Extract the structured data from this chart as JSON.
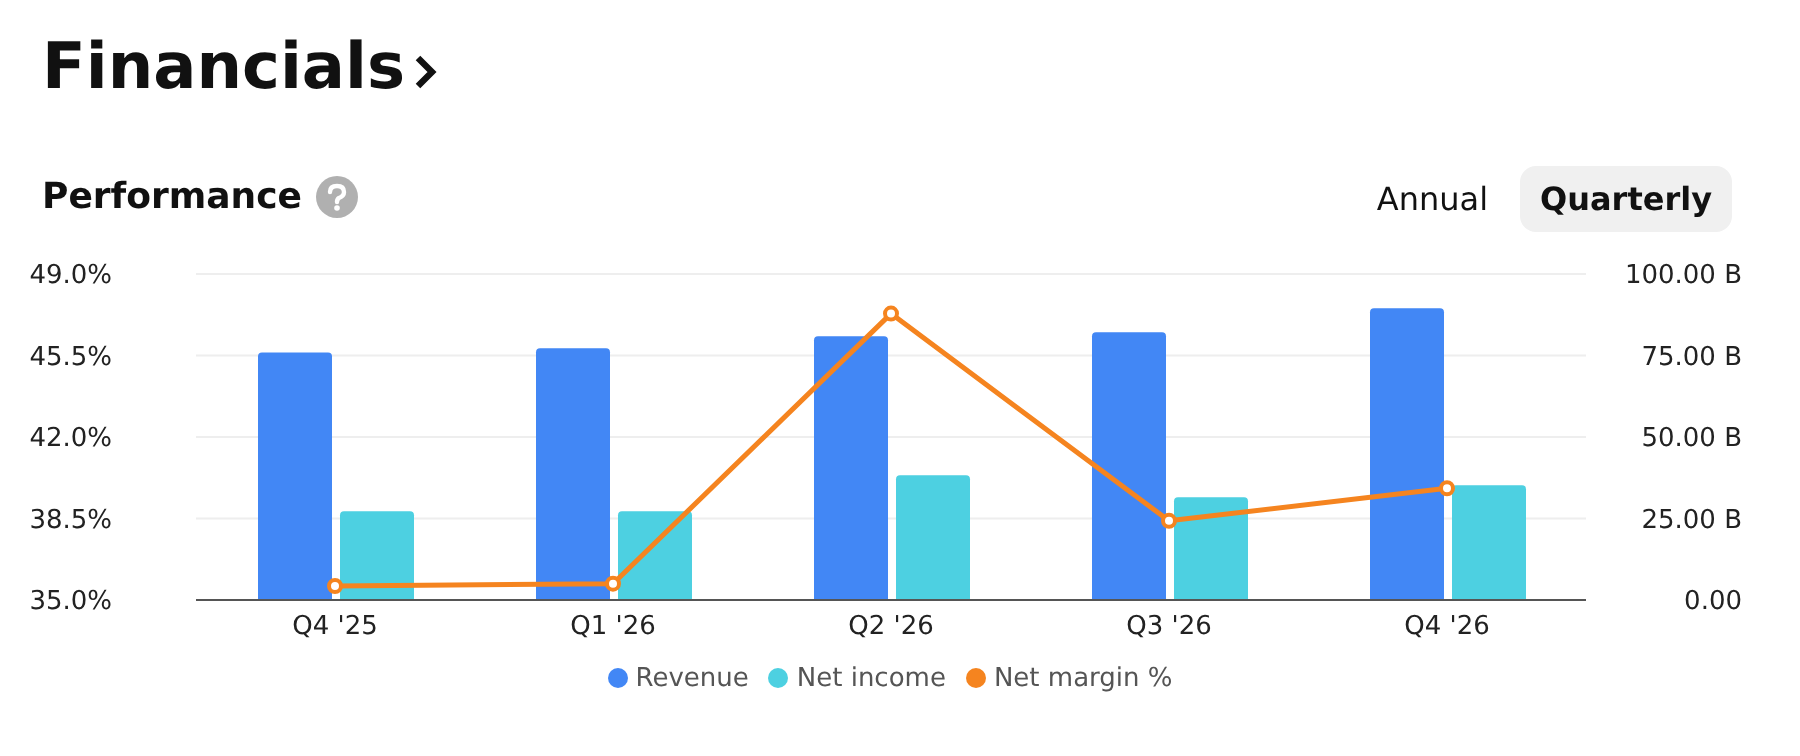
{
  "chart_data": {
    "type": "bar",
    "title": "Financials",
    "subtitle": "Performance",
    "annotations": [
      "Annual",
      "Quarterly"
    ],
    "categories": [
      "Q4 '25",
      "Q1 '26",
      "Q2 '26",
      "Q3 '26",
      "Q4 '26"
    ],
    "series": [
      {
        "name": "Revenue",
        "axis": "y2",
        "color": "#4287f5",
        "values": [
          75.9,
          77.2,
          80.9,
          82.1,
          89.5
        ]
      },
      {
        "name": "Net income",
        "axis": "y2",
        "color": "#4dd0e1",
        "values": [
          27.2,
          27.2,
          38.3,
          31.5,
          35.2
        ]
      },
      {
        "name": "Net margin %",
        "type": "line",
        "color": "#f5841f",
        "values": [
          35.6,
          35.7,
          47.3,
          38.4,
          39.8
        ]
      }
    ],
    "ylim": [
      35,
      49
    ],
    "yticks": [
      {
        "value": 35,
        "label": "35.0%"
      },
      {
        "value": 38.5,
        "label": "38.5%"
      },
      {
        "value": 42,
        "label": "42.0%"
      },
      {
        "value": 45.5,
        "label": "45.5%"
      },
      {
        "value": 49,
        "label": "49.0%"
      }
    ],
    "y2lim": [
      0,
      100
    ],
    "y2ticks": [
      {
        "value": 0,
        "label": "0.00"
      },
      {
        "value": 25,
        "label": "25.00 B"
      },
      {
        "value": 50,
        "label": "50.00 B"
      },
      {
        "value": 75,
        "label": "75.00 B"
      },
      {
        "value": 100,
        "label": "100.00 B"
      }
    ],
    "grid": "y",
    "legend": "bottom",
    "marker": "circle"
  }
}
